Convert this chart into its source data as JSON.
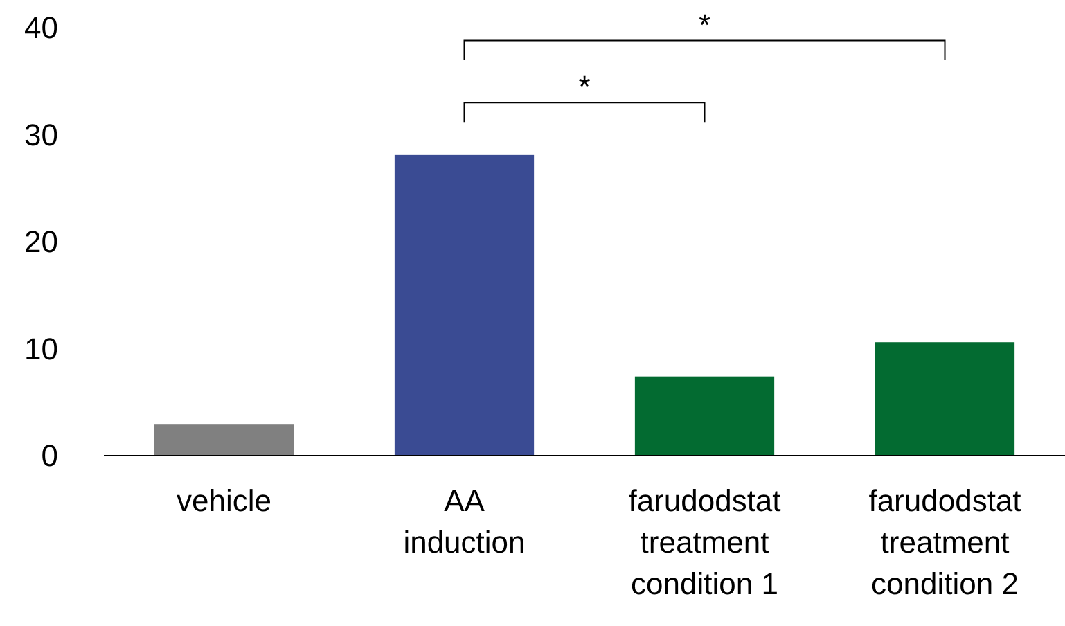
{
  "chart_data": {
    "type": "bar",
    "categories": [
      "vehicle",
      "AA induction",
      "farudodstat treatment condition 1",
      "farudodstat treatment condition 2"
    ],
    "values": [
      2.9,
      28.1,
      7.4,
      10.6
    ],
    "colors": [
      "#808080",
      "#3a4b93",
      "#036b31",
      "#036b31"
    ],
    "ylim": [
      0,
      40
    ],
    "yticks": [
      0,
      10,
      20,
      30,
      40
    ],
    "grid": false,
    "annotations": [
      "*",
      "*"
    ]
  }
}
